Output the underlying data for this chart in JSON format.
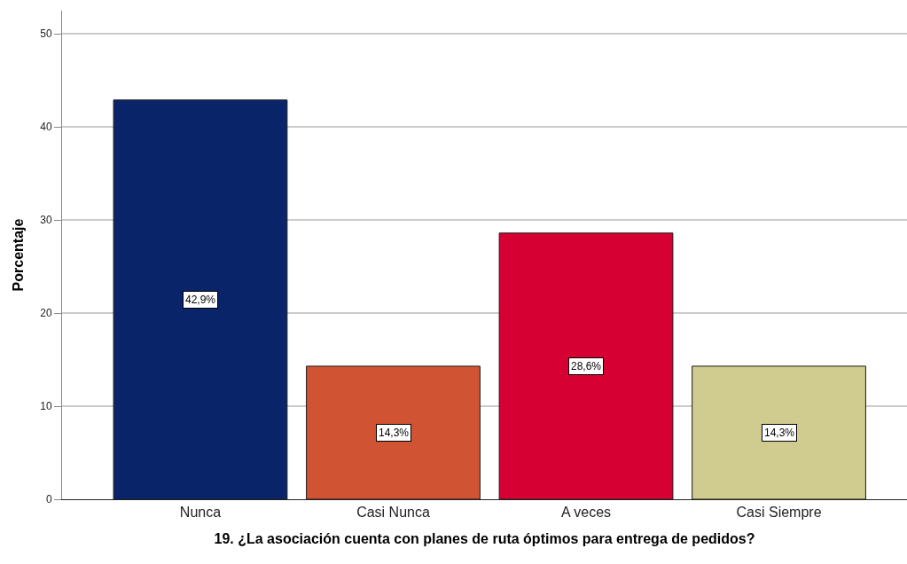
{
  "chart_data": {
    "type": "bar",
    "xlabel": "19. ¿La asociación cuenta con planes de ruta óptimos para entrega de pedidos?",
    "ylabel": "Porcentaje",
    "categories": [
      "Nunca",
      "Casi Nunca",
      "A veces",
      "Casi Siempre"
    ],
    "values": [
      42.9,
      14.3,
      28.6,
      14.3
    ],
    "colors": [
      "#0a246a",
      "#d05333",
      "#d60032",
      "#d0cb8f"
    ],
    "value_labels": [
      "42,9%",
      "14,3%",
      "28,6%",
      "14,3%"
    ],
    "ylim": [
      0,
      52.5
    ],
    "yticks": [
      0,
      10,
      20,
      30,
      40,
      50
    ],
    "grid": "y"
  }
}
